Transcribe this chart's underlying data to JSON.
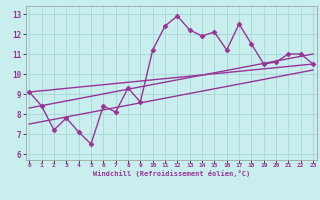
{
  "xlabel": "Windchill (Refroidissement éolien,°C)",
  "background_color": "#c8eeee",
  "grid_color": "#a8d8d8",
  "line_color": "#993399",
  "x_ticks": [
    0,
    1,
    2,
    3,
    4,
    5,
    6,
    7,
    8,
    9,
    10,
    11,
    12,
    13,
    14,
    15,
    16,
    17,
    18,
    19,
    20,
    21,
    22,
    23
  ],
  "ylim": [
    5.7,
    13.4
  ],
  "xlim": [
    -0.3,
    23.3
  ],
  "yticks": [
    6,
    7,
    8,
    9,
    10,
    11,
    12,
    13
  ],
  "series": [
    {
      "x": [
        0,
        1,
        2,
        3,
        4,
        5,
        6,
        7,
        8,
        9,
        10,
        11,
        12,
        13,
        14,
        15,
        16,
        17,
        18,
        19,
        20,
        21,
        22,
        23
      ],
      "y": [
        9.1,
        8.4,
        7.2,
        7.8,
        7.1,
        6.5,
        8.4,
        8.1,
        9.3,
        8.6,
        11.2,
        12.4,
        12.9,
        12.2,
        11.9,
        12.1,
        11.2,
        12.5,
        11.5,
        10.5,
        10.6,
        11.0,
        11.0,
        10.5
      ],
      "marker": "D",
      "markersize": 2.5,
      "linewidth": 1.0
    },
    {
      "x": [
        0,
        23
      ],
      "y": [
        9.1,
        10.5
      ],
      "marker": null,
      "linewidth": 1.0
    },
    {
      "x": [
        0,
        23
      ],
      "y": [
        8.3,
        11.0
      ],
      "marker": null,
      "linewidth": 1.0
    },
    {
      "x": [
        0,
        23
      ],
      "y": [
        7.5,
        10.2
      ],
      "marker": null,
      "linewidth": 1.0
    }
  ]
}
